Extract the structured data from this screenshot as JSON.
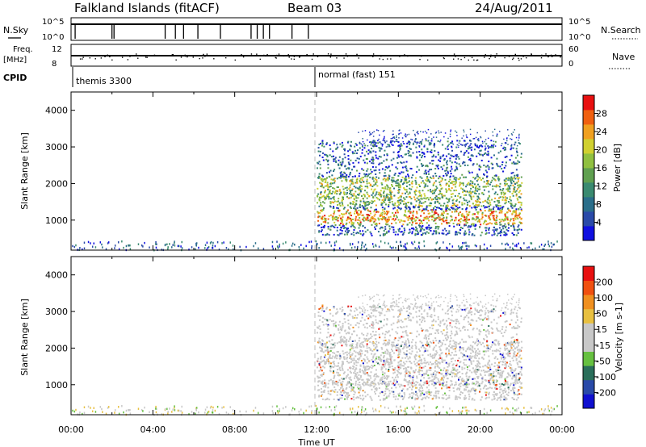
{
  "header": {
    "station": "Falkland Islands (fitACF)",
    "beam": "Beam 03",
    "date": "24/Aug/2011"
  },
  "top_panels": {
    "nsky_label": "N.Sky",
    "nsky_ticks": [
      "10^5",
      "10^0"
    ],
    "nsearch_label": "N.Search",
    "nsearch_ticks": [
      "10^5",
      "10^0"
    ],
    "freq_label": "Freq.",
    "freq_unit": "[MHz]",
    "freq_ticks": [
      "12",
      "8"
    ],
    "nave_label": "Nave",
    "nave_ticks": [
      "60",
      "0"
    ],
    "cpid_label": "CPID",
    "cpid_segments": [
      {
        "name": "themis 3300",
        "start": 0,
        "end": 12
      },
      {
        "name": "normal (fast) 151",
        "start": 12,
        "end": 24
      }
    ]
  },
  "colors": {
    "power_scale": [
      "#1010e0",
      "#2a4aa8",
      "#2a6e8a",
      "#3a8a70",
      "#60a050",
      "#90c040",
      "#d0d030",
      "#f0a020",
      "#f06010",
      "#e81010"
    ],
    "velocity_scale": [
      "#1010d0",
      "#2a4aa8",
      "#2a6e5a",
      "#66c040",
      "#c8c8c8",
      "#c8c8c8",
      "#e8c040",
      "#f09020",
      "#f05010",
      "#e81010"
    ]
  },
  "chart_data": [
    {
      "type": "heatmap",
      "name": "power",
      "x_axis": {
        "range_hours": [
          0,
          24
        ],
        "tick_labels": [
          "00:00",
          "04:00",
          "08:00",
          "12:00",
          "16:00",
          "20:00",
          "00:00"
        ],
        "label": "Time UT"
      },
      "y_axis": {
        "label": "Slant Range [km]",
        "range": [
          180,
          4500
        ],
        "ticks": [
          1000,
          2000,
          3000,
          4000
        ]
      },
      "colorbar": {
        "label": "Power [dB]",
        "range": [
          0,
          30
        ],
        "tick_labels": [
          "4",
          "8",
          "12",
          "16",
          "20",
          "24",
          "28"
        ]
      },
      "grid": false
    },
    {
      "type": "heatmap",
      "name": "velocity",
      "x_axis": {
        "range_hours": [
          0,
          24
        ],
        "tick_labels": [
          "00:00",
          "04:00",
          "08:00",
          "12:00",
          "16:00",
          "20:00",
          "00:00"
        ],
        "label": "Time UT"
      },
      "y_axis": {
        "label": "Slant Range [km]",
        "range": [
          180,
          4500
        ],
        "ticks": [
          1000,
          2000,
          3000,
          4000
        ]
      },
      "colorbar": {
        "label": "Velocity [m s-1]",
        "range": [
          -250,
          250
        ],
        "tick_labels": [
          "200",
          "100",
          "50",
          "15",
          "-15",
          "-50",
          "-100",
          "-200"
        ]
      },
      "grid": false
    }
  ]
}
